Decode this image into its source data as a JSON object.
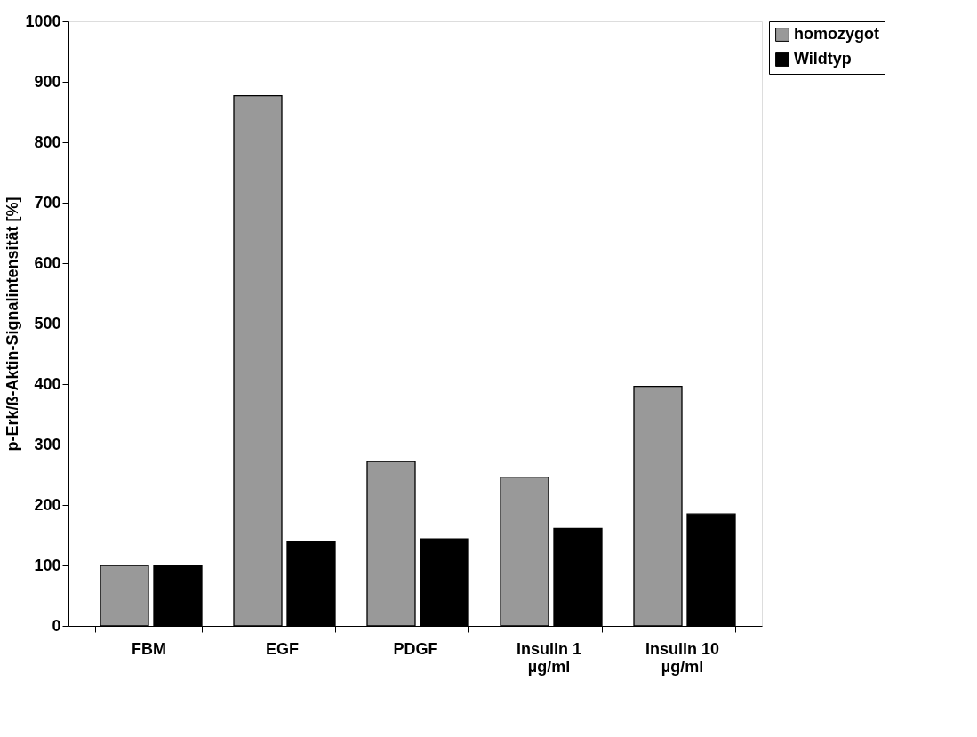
{
  "chart_data": {
    "type": "bar",
    "ylabel": "p-Erk/ß-Aktin-Signalintensität [%]",
    "categories": [
      "FBM",
      "EGF",
      "PDGF",
      "Insulin 1\nµg/ml",
      "Insulin 10\nµg/ml"
    ],
    "series": [
      {
        "name": "homozygot",
        "color": "#999999",
        "values": [
          100,
          877,
          272,
          246,
          396
        ]
      },
      {
        "name": "Wildtyp",
        "color": "#000000",
        "values": [
          100,
          139,
          144,
          161,
          185
        ]
      }
    ],
    "ylim": [
      0,
      1000
    ],
    "yticks": [
      0,
      100,
      200,
      300,
      400,
      500,
      600,
      700,
      800,
      900,
      1000
    ],
    "grid": false,
    "legend": "right"
  }
}
